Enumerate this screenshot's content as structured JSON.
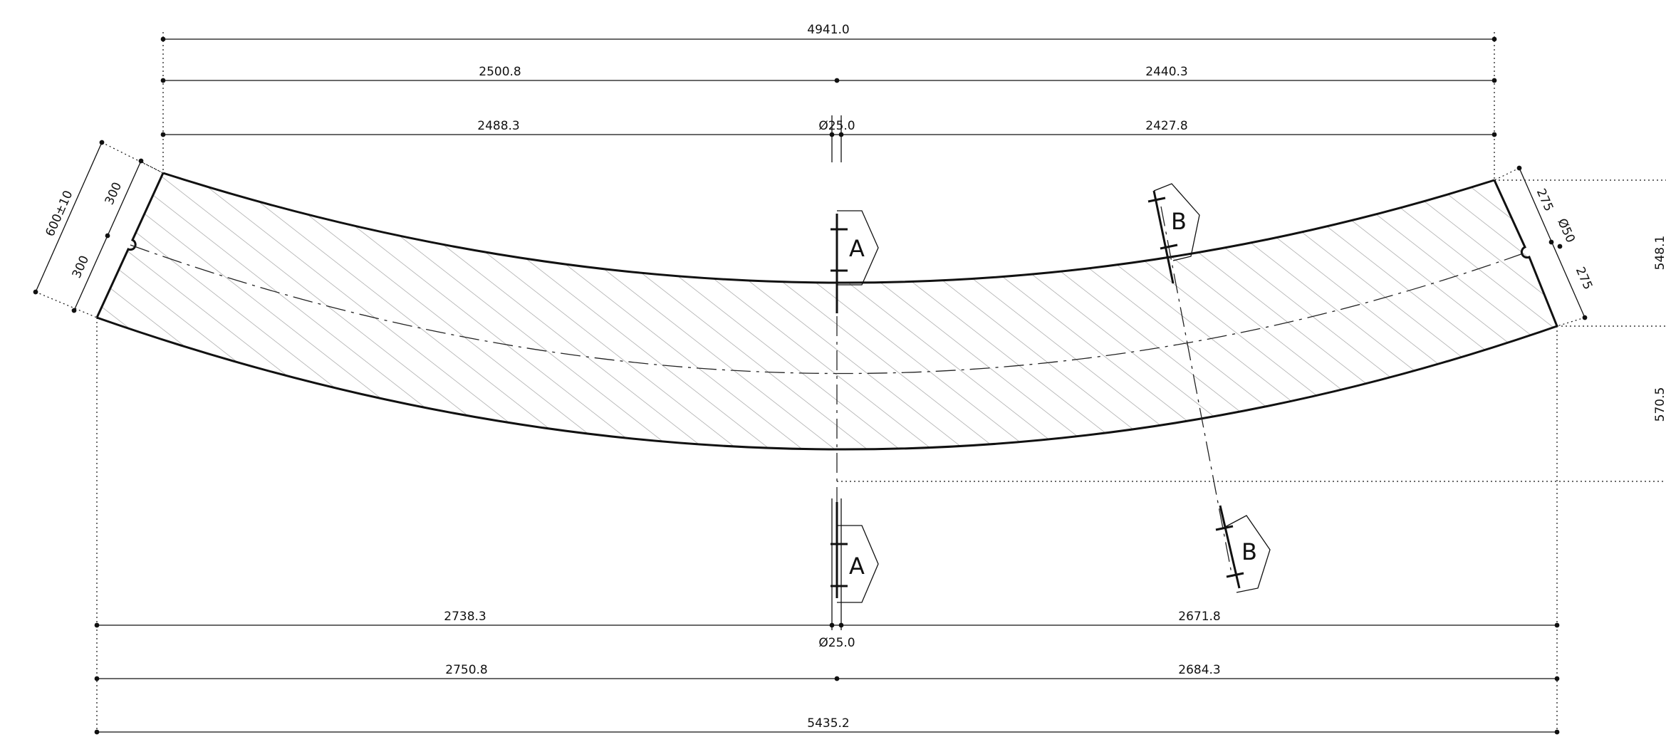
{
  "dimensions": {
    "top_overall": "4941.0",
    "top_left_half": "2500.8",
    "top_right_half": "2440.3",
    "top_left_inner": "2488.3",
    "top_hole": "Ø25.0",
    "top_right_inner": "2427.8",
    "bottom_left_inner": "2738.3",
    "bottom_right_inner": "2671.8",
    "bottom_hole": "Ø25.0",
    "bottom_left_half": "2750.8",
    "bottom_right_half": "2684.3",
    "bottom_overall": "5435.2",
    "left_end_total": "600±10",
    "left_end_upper": "300",
    "left_end_lower": "300",
    "right_end_upper": "275",
    "right_end_hole": "Ø50",
    "right_end_lower": "275",
    "right_height_upper": "548.1",
    "right_height_lower": "570.5"
  },
  "sections": {
    "a_label": "A",
    "b_label": "B"
  }
}
